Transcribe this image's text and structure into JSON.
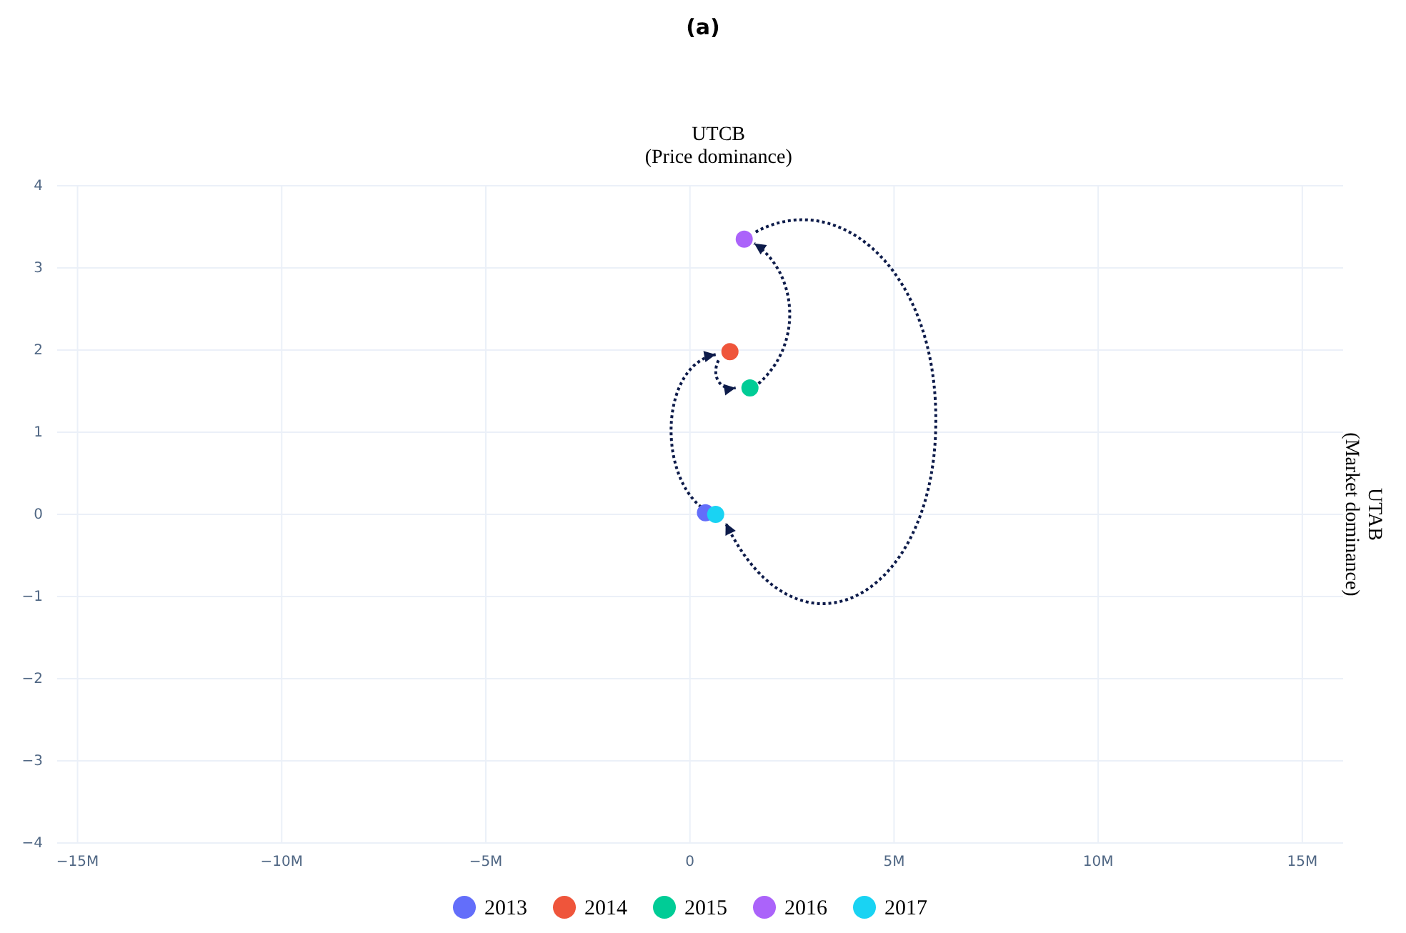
{
  "chart_data": {
    "type": "scatter",
    "title": "(a)",
    "ylabel": "UTCB\n(Price dominance)",
    "y2label": "UTAB\n(Market dominance)",
    "xlim": [
      -15500000,
      16000000
    ],
    "ylim": [
      -4,
      4
    ],
    "xticks": [
      {
        "value": -15000000,
        "label": "−15M"
      },
      {
        "value": -10000000,
        "label": "−10M"
      },
      {
        "value": -5000000,
        "label": "−5M"
      },
      0,
      {
        "value": 5000000,
        "label": "5M"
      },
      {
        "value": 10000000,
        "label": "10M"
      },
      {
        "value": 15000000,
        "label": "15M"
      }
    ],
    "yticks": [
      {
        "value": -4,
        "label": "−4"
      },
      {
        "value": -3,
        "label": "−3"
      },
      {
        "value": -2,
        "label": "−2"
      },
      {
        "value": -1,
        "label": "−1"
      },
      0,
      1,
      2,
      3,
      4
    ],
    "grid": true,
    "legend": "bottom",
    "marker": "circle",
    "series": [
      {
        "name": "2013",
        "color": "#636efa",
        "x": [
          380000
        ],
        "values": [
          0.02
        ]
      },
      {
        "name": "2014",
        "color": "#ef553b",
        "x": [
          980000
        ],
        "values": [
          1.98
        ]
      },
      {
        "name": "2015",
        "color": "#00cc96",
        "x": [
          1470000
        ],
        "values": [
          1.54
        ]
      },
      {
        "name": "2016",
        "color": "#ab63fa",
        "x": [
          1330000
        ],
        "values": [
          3.35
        ]
      },
      {
        "name": "2017",
        "color": "#19d3f3",
        "x": [
          630000
        ],
        "values": [
          0.0
        ]
      }
    ]
  }
}
